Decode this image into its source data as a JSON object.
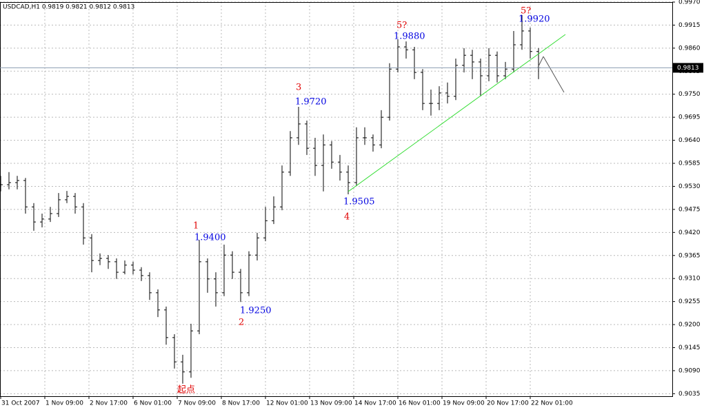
{
  "chart_data": {
    "type": "ohlc",
    "title": "USDCAD,H1  0.9819 0.9821 0.9812 0.9813",
    "color": "#000000",
    "x": [
      0,
      6,
      12,
      18,
      24,
      30,
      36,
      42,
      48,
      54,
      60,
      66,
      72,
      78,
      84,
      90,
      96,
      102,
      108,
      114,
      120,
      126,
      132,
      138,
      144,
      150,
      156,
      162,
      168,
      174,
      180,
      186,
      192,
      198,
      204,
      210,
      216,
      222,
      228,
      234,
      240,
      246,
      252,
      258,
      264,
      270,
      276,
      282,
      288,
      294,
      300,
      306,
      312,
      318,
      324,
      330,
      336,
      342,
      348,
      354,
      360,
      366,
      372,
      378,
      384,
      390
    ],
    "open": [
      0.9531,
      0.9534,
      0.9539,
      0.9544,
      0.9481,
      0.9445,
      0.9452,
      0.9465,
      0.9498,
      0.9506,
      0.9481,
      0.9407,
      0.9353,
      0.9358,
      0.935,
      0.9325,
      0.9342,
      0.933,
      0.9317,
      0.9276,
      0.9235,
      0.9169,
      0.9111,
      0.9087,
      0.9185,
      0.935,
      0.9309,
      0.9276,
      0.9366,
      0.9325,
      0.9276,
      0.9366,
      0.9407,
      0.9448,
      0.9481,
      0.9564,
      0.9646,
      0.9679,
      0.9621,
      0.958,
      0.9629,
      0.9588,
      0.9564,
      0.9539,
      0.9646,
      0.9646,
      0.9629,
      0.9695,
      0.981,
      0.9863,
      0.9856,
      0.9802,
      0.9728,
      0.9728,
      0.9753,
      0.9745,
      0.9819,
      0.9843,
      0.9827,
      0.9794,
      0.9843,
      0.9794,
      0.981,
      0.9868,
      0.9901,
      0.9852
    ],
    "high": [
      0.9555,
      0.9564,
      0.9555,
      0.955,
      0.949,
      0.9465,
      0.9481,
      0.9514,
      0.9519,
      0.9514,
      0.949,
      0.9416,
      0.937,
      0.9366,
      0.9358,
      0.9353,
      0.935,
      0.9337,
      0.9325,
      0.9284,
      0.9243,
      0.9177,
      0.9128,
      0.9202,
      0.9402,
      0.9358,
      0.9325,
      0.9391,
      0.9375,
      0.9333,
      0.9375,
      0.9419,
      0.9481,
      0.9506,
      0.958,
      0.9662,
      0.972,
      0.9687,
      0.9646,
      0.9654,
      0.9638,
      0.9605,
      0.958,
      0.9671,
      0.9671,
      0.9654,
      0.9712,
      0.9824,
      0.9881,
      0.9876,
      0.9863,
      0.981,
      0.9761,
      0.9769,
      0.9778,
      0.9835,
      0.986,
      0.9856,
      0.9835,
      0.986,
      0.9852,
      0.9827,
      0.9901,
      0.9939,
      0.9909,
      0.986
    ],
    "low": [
      0.9518,
      0.9523,
      0.9523,
      0.9465,
      0.9424,
      0.9432,
      0.9445,
      0.9457,
      0.949,
      0.9465,
      0.9391,
      0.9325,
      0.9342,
      0.9333,
      0.9309,
      0.932,
      0.932,
      0.9304,
      0.9259,
      0.9218,
      0.9152,
      0.9095,
      0.9059,
      0.9073,
      0.9177,
      0.9276,
      0.9243,
      0.9268,
      0.9309,
      0.9254,
      0.9268,
      0.9353,
      0.9399,
      0.944,
      0.9473,
      0.9555,
      0.9629,
      0.9605,
      0.9555,
      0.9518,
      0.9572,
      0.9544,
      0.9511,
      0.9531,
      0.9629,
      0.9613,
      0.9621,
      0.9687,
      0.9802,
      0.9835,
      0.9786,
      0.9712,
      0.9699,
      0.9712,
      0.9728,
      0.9736,
      0.9802,
      0.9786,
      0.9745,
      0.9781,
      0.9778,
      0.9786,
      0.9802,
      0.9856,
      0.9835,
      0.9786
    ],
    "close": [
      0.9534,
      0.9539,
      0.9544,
      0.9481,
      0.9445,
      0.9452,
      0.9465,
      0.9498,
      0.9506,
      0.9481,
      0.9407,
      0.9353,
      0.9358,
      0.935,
      0.9325,
      0.9342,
      0.933,
      0.9317,
      0.9276,
      0.9235,
      0.9169,
      0.9111,
      0.9087,
      0.9185,
      0.935,
      0.9309,
      0.9276,
      0.9366,
      0.9325,
      0.9276,
      0.9366,
      0.9407,
      0.9448,
      0.9481,
      0.9564,
      0.9646,
      0.9679,
      0.9621,
      0.958,
      0.9629,
      0.9588,
      0.9564,
      0.9539,
      0.9646,
      0.9646,
      0.9629,
      0.9695,
      0.981,
      0.9863,
      0.9856,
      0.9802,
      0.9728,
      0.9728,
      0.9753,
      0.9745,
      0.9819,
      0.9843,
      0.9827,
      0.9794,
      0.9843,
      0.9794,
      0.981,
      0.9868,
      0.9901,
      0.9852,
      0.9813
    ],
    "xlim": [
      -0.5,
      487
    ],
    "xticks": [
      {
        "value": 0,
        "label": "31 Oct 2007"
      },
      {
        "value": 32,
        "label": "1 Nov 09:00"
      },
      {
        "value": 64,
        "label": "2 Nov 17:00"
      },
      {
        "value": 96,
        "label": "6 Nov 01:00"
      },
      {
        "value": 128,
        "label": "7 Nov 09:00"
      },
      {
        "value": 160,
        "label": "8 Nov 17:00"
      },
      {
        "value": 192,
        "label": "12 Nov 01:00"
      },
      {
        "value": 224,
        "label": "13 Nov 09:00"
      },
      {
        "value": 256,
        "label": "14 Nov 17:00"
      },
      {
        "value": 288,
        "label": "16 Nov 01:00"
      },
      {
        "value": 320,
        "label": "19 Nov 09:00"
      },
      {
        "value": 352,
        "label": "20 Nov 17:00"
      },
      {
        "value": 384,
        "label": "22 Nov 01:00"
      }
    ],
    "ylim": [
      0.9029,
      0.997
    ],
    "yticks": [
      {
        "value": 0.997,
        "label": "0.9970"
      },
      {
        "value": 0.9915,
        "label": "0.9915"
      },
      {
        "value": 0.986,
        "label": "0.9860"
      },
      {
        "value": 0.9805,
        "label": "0.9805"
      },
      {
        "value": 0.975,
        "label": "0.9750"
      },
      {
        "value": 0.9695,
        "label": "0.9695"
      },
      {
        "value": 0.964,
        "label": "0.9640"
      },
      {
        "value": 0.9585,
        "label": "0.9585"
      },
      {
        "value": 0.953,
        "label": "0.9530"
      },
      {
        "value": 0.9475,
        "label": "0.9475"
      },
      {
        "value": 0.942,
        "label": "0.9420"
      },
      {
        "value": 0.9365,
        "label": "0.9365"
      },
      {
        "value": 0.931,
        "label": "0.9310"
      },
      {
        "value": 0.9255,
        "label": "0.9255"
      },
      {
        "value": 0.92,
        "label": "0.9200"
      },
      {
        "value": 0.9145,
        "label": "0.9145"
      },
      {
        "value": 0.909,
        "label": "0.9090"
      },
      {
        "value": 0.9035,
        "label": "0.9035"
      }
    ],
    "grid": true,
    "annotations": [
      {
        "text": "1",
        "color": "#e00000"
      },
      {
        "text": "1.9400",
        "color": "#0000e0"
      },
      {
        "text": "1.9250",
        "color": "#0000e0"
      },
      {
        "text": "2",
        "color": "#e00000"
      },
      {
        "text": "3",
        "color": "#e00000"
      },
      {
        "text": "1.9720",
        "color": "#0000e0"
      },
      {
        "text": "1.9505",
        "color": "#0000e0"
      },
      {
        "text": "4",
        "color": "#e00000"
      },
      {
        "text": "5?",
        "color": "#e00000"
      },
      {
        "text": "1.9880",
        "color": "#0000e0"
      },
      {
        "text": "5?",
        "color": "#e00000"
      },
      {
        "text": "1.9920",
        "color": "#0000e0"
      },
      {
        "text": "起点",
        "color": "#e00000"
      }
    ]
  }
}
